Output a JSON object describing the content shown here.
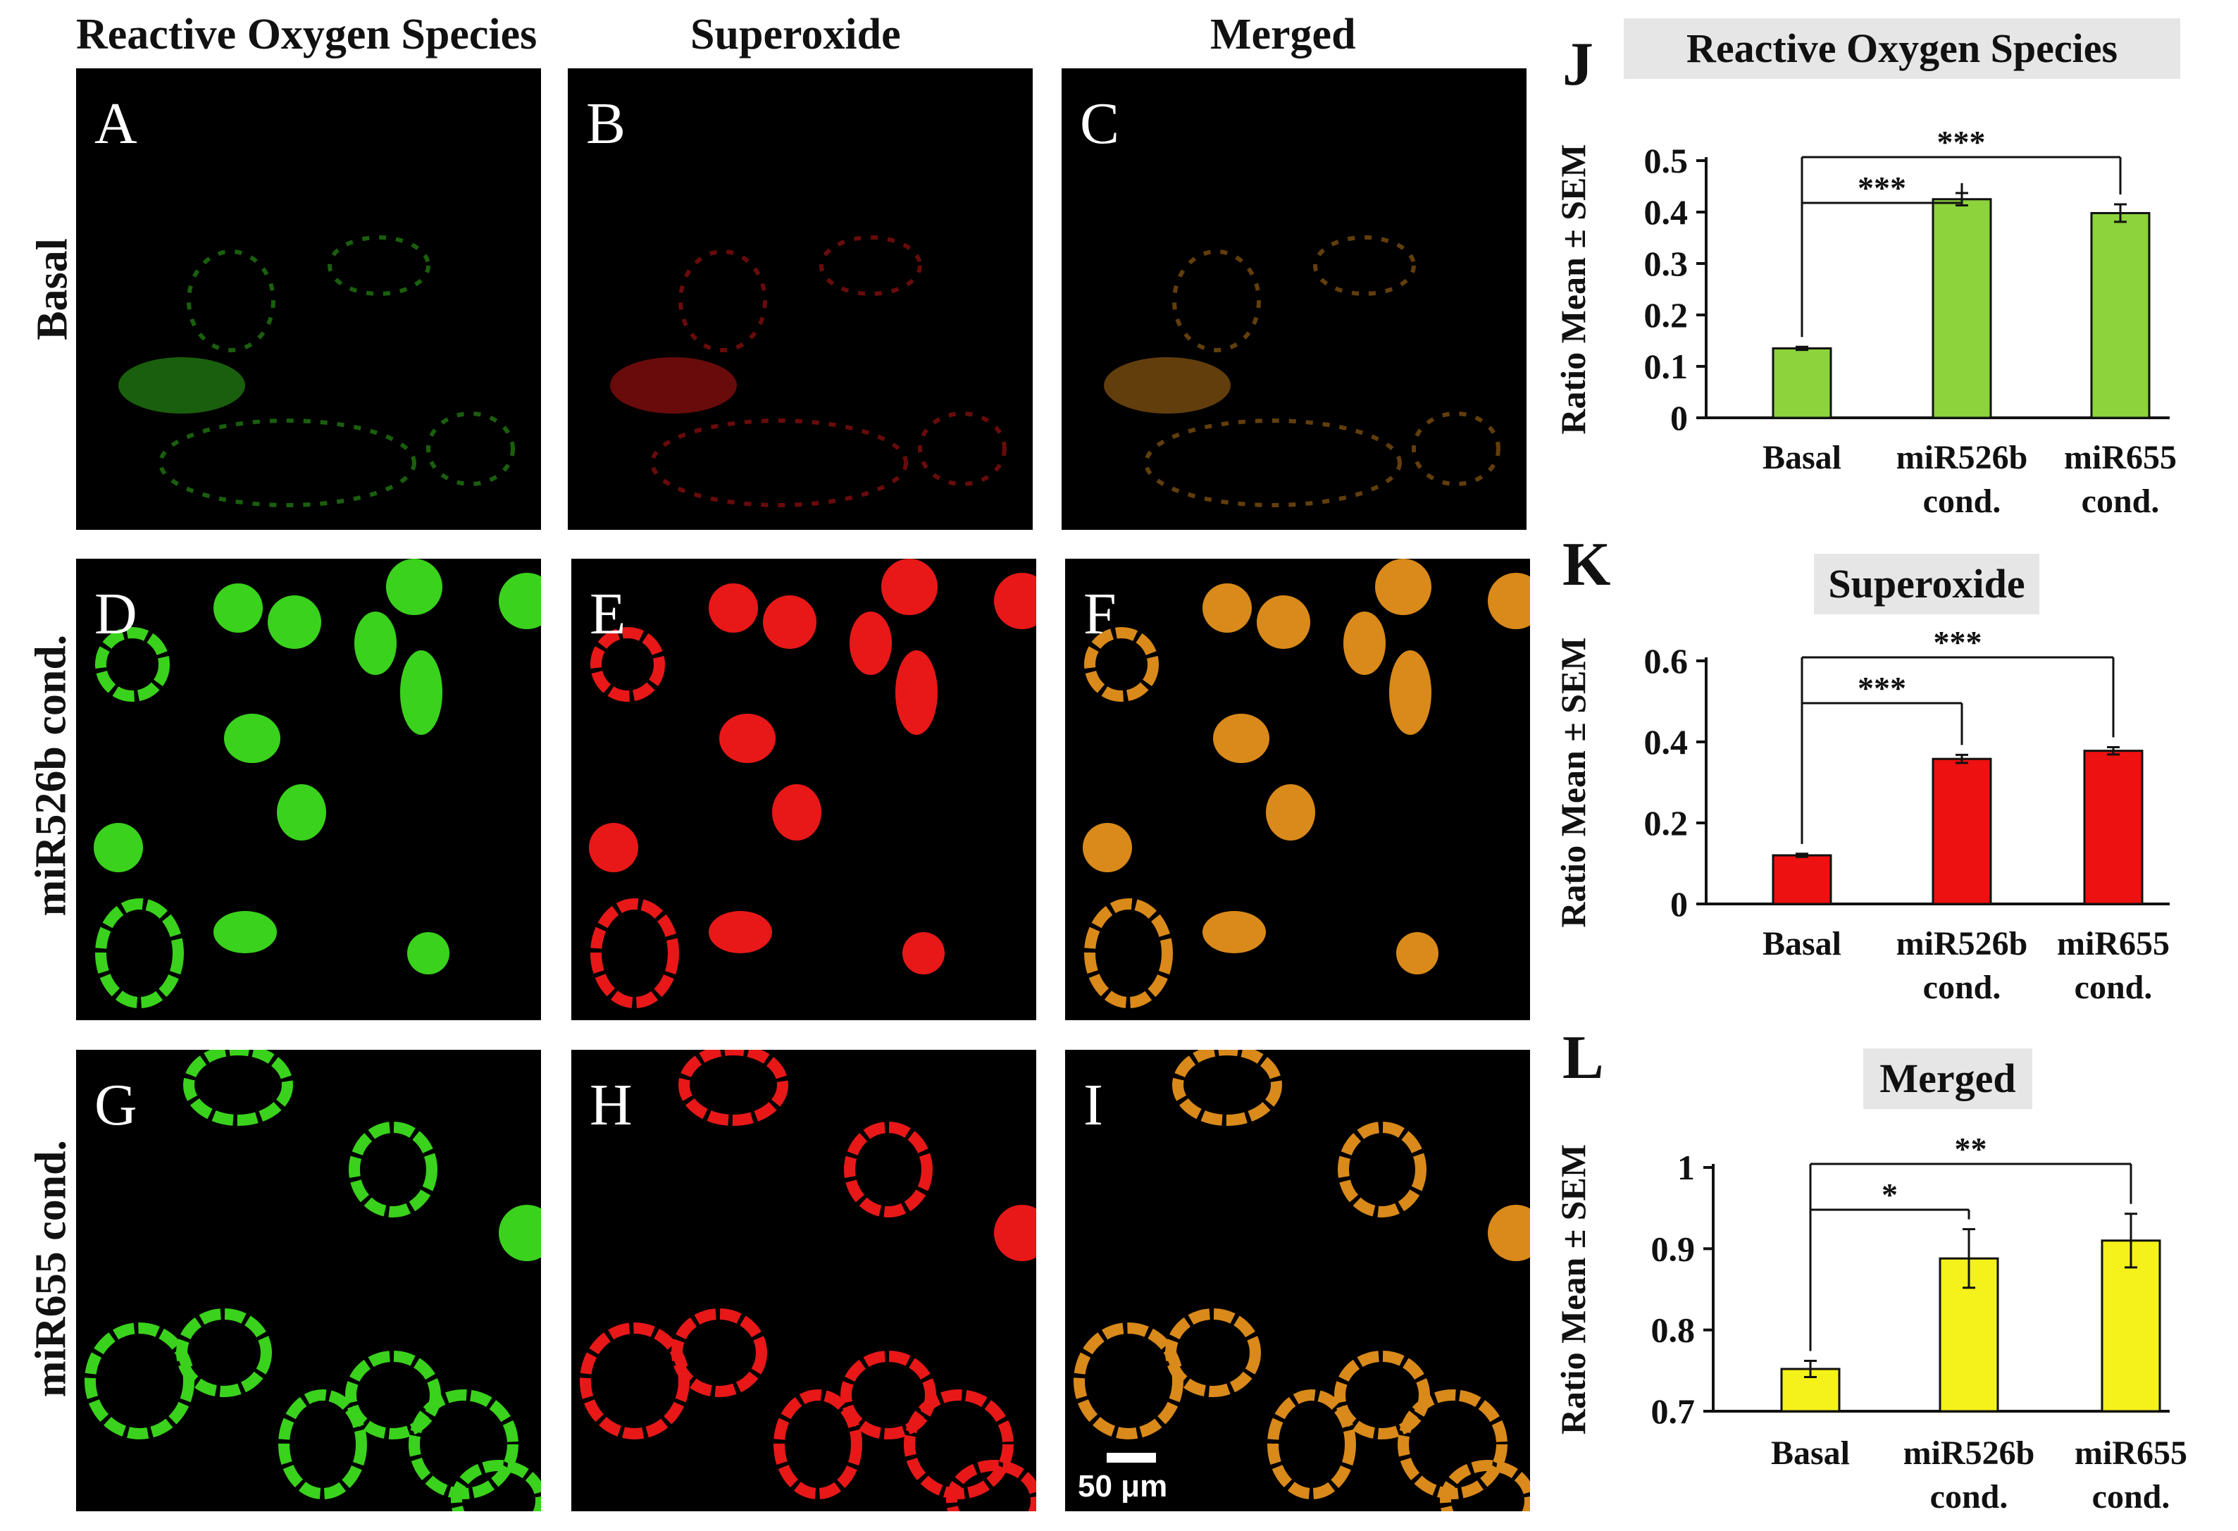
{
  "column_headers": [
    "Reactive Oxygen Species",
    "Superoxide",
    "Merged"
  ],
  "row_headers": [
    "Basal",
    "miR526b cond.",
    "miR655 cond."
  ],
  "panel_labels": [
    "A",
    "B",
    "C",
    "D",
    "E",
    "F",
    "G",
    "H",
    "I"
  ],
  "scale_bar_label": "50 μm",
  "colors": {
    "ros_channel": "#3ad21c",
    "superoxide_channel": "#e81818",
    "merged_channel": "#d98a1a",
    "bar_J": "#8cd33c",
    "bar_K": "#ee1111",
    "bar_L": "#f4f21a",
    "title_box": "#e6e6e6"
  },
  "chart_data": [
    {
      "type": "bar",
      "panel_letter": "J",
      "title": "Reactive Oxygen Species",
      "ylabel": "Ratio Mean ± SEM",
      "categories": [
        "Basal",
        "miR526b\ncond.",
        "miR655\ncond."
      ],
      "values": [
        0.135,
        0.425,
        0.398
      ],
      "errors": [
        0.003,
        0.012,
        0.017
      ],
      "ylim": [
        0,
        0.5
      ],
      "yticks": [
        "0",
        "0.1",
        "0.2",
        "0.3",
        "0.4",
        "0.5"
      ],
      "significance": [
        {
          "from": 0,
          "to": 1,
          "label": "***"
        },
        {
          "from": 0,
          "to": 2,
          "label": "***"
        }
      ]
    },
    {
      "type": "bar",
      "panel_letter": "K",
      "title": "Superoxide",
      "ylabel": "Ratio Mean ± SEM",
      "categories": [
        "Basal",
        "miR526b\ncond.",
        "miR655\ncond."
      ],
      "values": [
        0.12,
        0.358,
        0.378
      ],
      "errors": [
        0.004,
        0.01,
        0.009
      ],
      "ylim": [
        0,
        0.6
      ],
      "yticks": [
        "0",
        "0.2",
        "0.4",
        "0.6"
      ],
      "significance": [
        {
          "from": 0,
          "to": 1,
          "label": "***"
        },
        {
          "from": 0,
          "to": 2,
          "label": "***"
        }
      ]
    },
    {
      "type": "bar",
      "panel_letter": "L",
      "title": "Merged",
      "ylabel": "Ratio Mean ± SEM",
      "categories": [
        "Basal",
        "miR526b\ncond.",
        "miR655\ncond."
      ],
      "values": [
        0.752,
        0.888,
        0.91
      ],
      "errors": [
        0.01,
        0.036,
        0.033
      ],
      "ylim": [
        0.7,
        1.0
      ],
      "yticks": [
        "0.7",
        "0.8",
        "0.9",
        "1"
      ],
      "significance": [
        {
          "from": 0,
          "to": 1,
          "label": "*"
        },
        {
          "from": 0,
          "to": 2,
          "label": "**"
        }
      ]
    }
  ]
}
